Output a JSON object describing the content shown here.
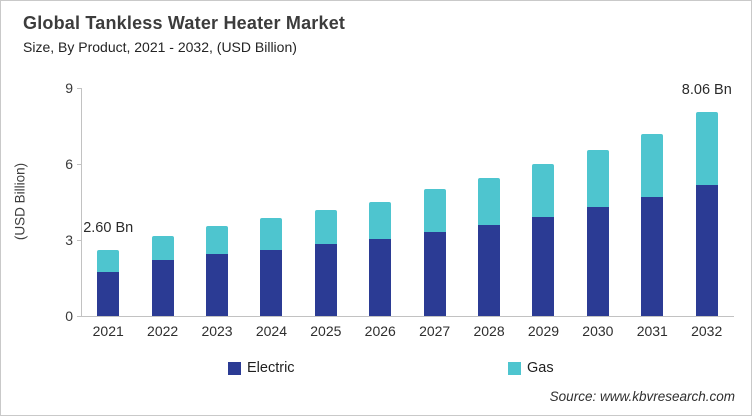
{
  "header": {
    "title": "Global Tankless Water Heater Market",
    "subtitle": "Size, By Product, 2021 - 2032, (USD Billion)"
  },
  "chart_data": {
    "type": "bar",
    "stacked": true,
    "title": "Global Tankless Water Heater Market Size, By Product, 2021 - 2032, (USD Billion)",
    "categories": [
      "2021",
      "2022",
      "2023",
      "2024",
      "2025",
      "2026",
      "2027",
      "2028",
      "2029",
      "2030",
      "2031",
      "2032"
    ],
    "series": [
      {
        "name": "Electric",
        "color": "#2b3b94",
        "values": [
          1.75,
          2.2,
          2.45,
          2.6,
          2.85,
          3.05,
          3.3,
          3.6,
          3.9,
          4.3,
          4.7,
          5.16
        ]
      },
      {
        "name": "Gas",
        "color": "#4ec5cf",
        "values": [
          0.85,
          0.95,
          1.1,
          1.25,
          1.35,
          1.45,
          1.7,
          1.85,
          2.1,
          2.25,
          2.5,
          2.9
        ]
      }
    ],
    "totals": [
      2.6,
      3.15,
      3.55,
      3.85,
      4.2,
      4.5,
      5.0,
      5.45,
      6.0,
      6.55,
      7.2,
      8.06
    ],
    "xlabel": "",
    "ylabel": "(USD Billion)",
    "ylim": [
      0,
      9
    ],
    "yticks": [
      0,
      3,
      6,
      9
    ],
    "grid": false,
    "legend_position": "bottom",
    "annotations": [
      {
        "category": "2021",
        "text": "2.60 Bn"
      },
      {
        "category": "2032",
        "text": "8.06 Bn"
      }
    ]
  },
  "footer": {
    "source": "Source: www.kbvresearch.com"
  }
}
